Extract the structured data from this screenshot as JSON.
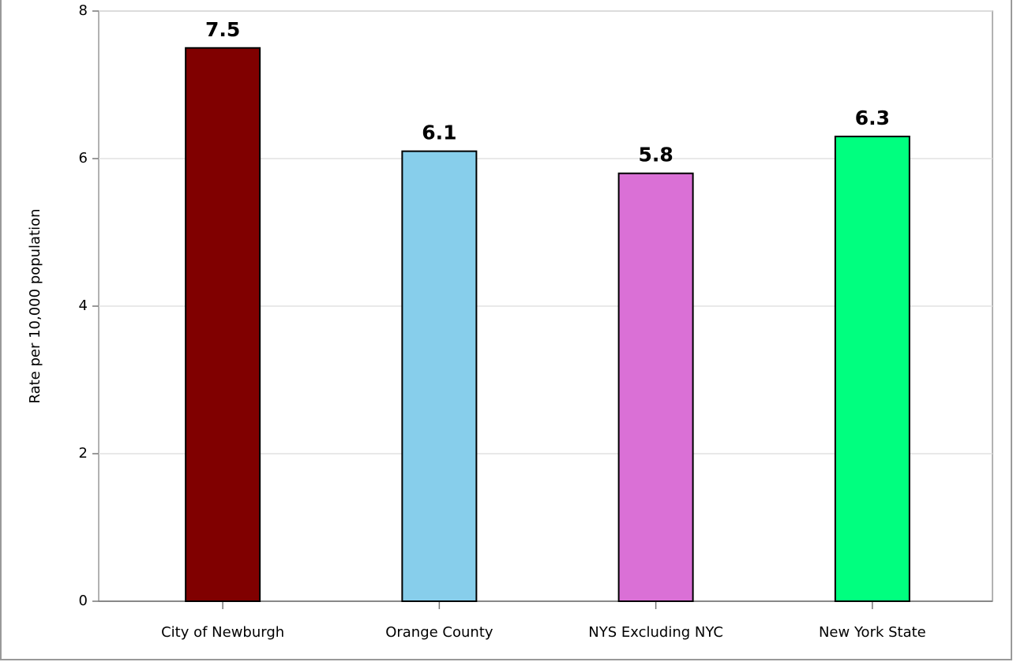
{
  "chart_data": {
    "type": "bar",
    "y_label": "Rate per 10,000 population",
    "categories": [
      "City of Newburgh",
      "Orange County",
      "NYS Excluding NYC",
      "New York State"
    ],
    "values": [
      7.5,
      6.1,
      5.8,
      6.3
    ],
    "colors": [
      "#800000",
      "#87ceeb",
      "#da70d6",
      "#00ff7f"
    ],
    "ylim": [
      0,
      8
    ],
    "yticks": [
      0,
      2,
      4,
      6,
      8
    ],
    "grid": true
  }
}
